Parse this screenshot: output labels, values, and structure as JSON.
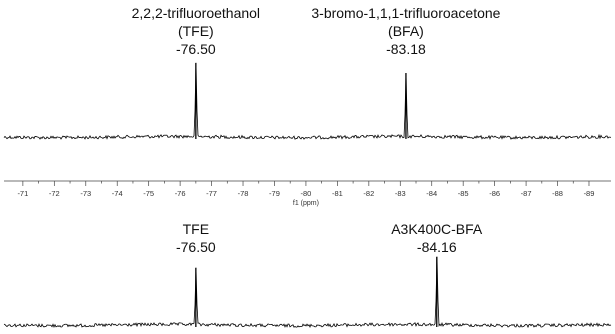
{
  "chart_data": {
    "type": "line",
    "xlabel": "f1 (ppm)",
    "xlim": [
      -70.4,
      -89.7
    ],
    "xticks": [
      -71,
      -72,
      -73,
      -74,
      -75,
      -76,
      -77,
      -78,
      -79,
      -80,
      -81,
      -82,
      -83,
      -84,
      -85,
      -86,
      -87,
      -88,
      -89
    ],
    "xtick_labels": [
      "-71",
      "-72",
      "-73",
      "-74",
      "-75",
      "-76",
      "-77",
      "-78",
      "-79",
      "-80",
      "-81",
      "-82",
      "-83",
      "-84",
      "-85",
      "-86",
      "-87",
      "-88",
      "-89"
    ],
    "spectra": [
      {
        "peaks": [
          {
            "x": -76.5,
            "height": 0.95,
            "label_lines": [
              "2,2,2-trifluoroethanol",
              "(TFE)",
              "-76.50"
            ]
          },
          {
            "x": -83.18,
            "height": 0.82,
            "label_lines": [
              "3-bromo-1,1,1-trifluoroacetone",
              "(BFA)",
              "-83.18"
            ]
          }
        ]
      },
      {
        "peaks": [
          {
            "x": -76.5,
            "height": 0.52,
            "label_lines": [
              "TFE",
              "-76.50"
            ]
          },
          {
            "x": -84.16,
            "height": 0.62,
            "label_lines": [
              "A3K400C-BFA",
              "-84.16"
            ]
          }
        ]
      }
    ]
  }
}
